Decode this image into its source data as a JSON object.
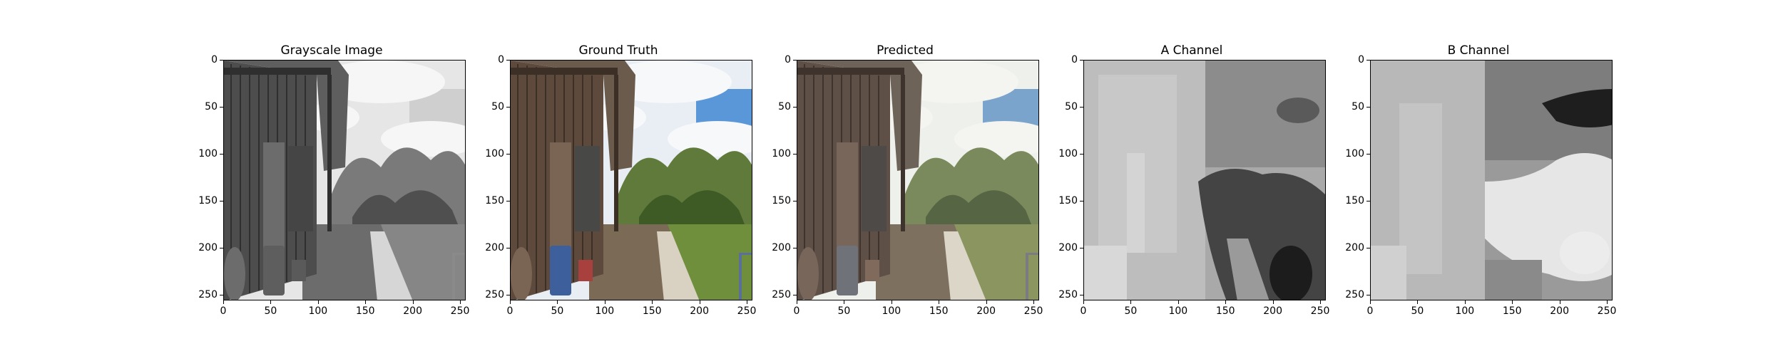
{
  "panels": [
    {
      "id": "grayscale",
      "title": "Grayscale Image",
      "mode": "gray"
    },
    {
      "id": "ground-truth",
      "title": "Ground Truth",
      "mode": "color"
    },
    {
      "id": "predicted",
      "title": "Predicted",
      "mode": "faded"
    },
    {
      "id": "a-channel",
      "title": "A Channel",
      "mode": "a"
    },
    {
      "id": "b-channel",
      "title": "B Channel",
      "mode": "b"
    }
  ],
  "x_ticks": [
    "0",
    "50",
    "100",
    "150",
    "200",
    "250"
  ],
  "y_ticks": [
    "0",
    "50",
    "100",
    "150",
    "200",
    "250"
  ],
  "axis_range": [
    0,
    256
  ]
}
